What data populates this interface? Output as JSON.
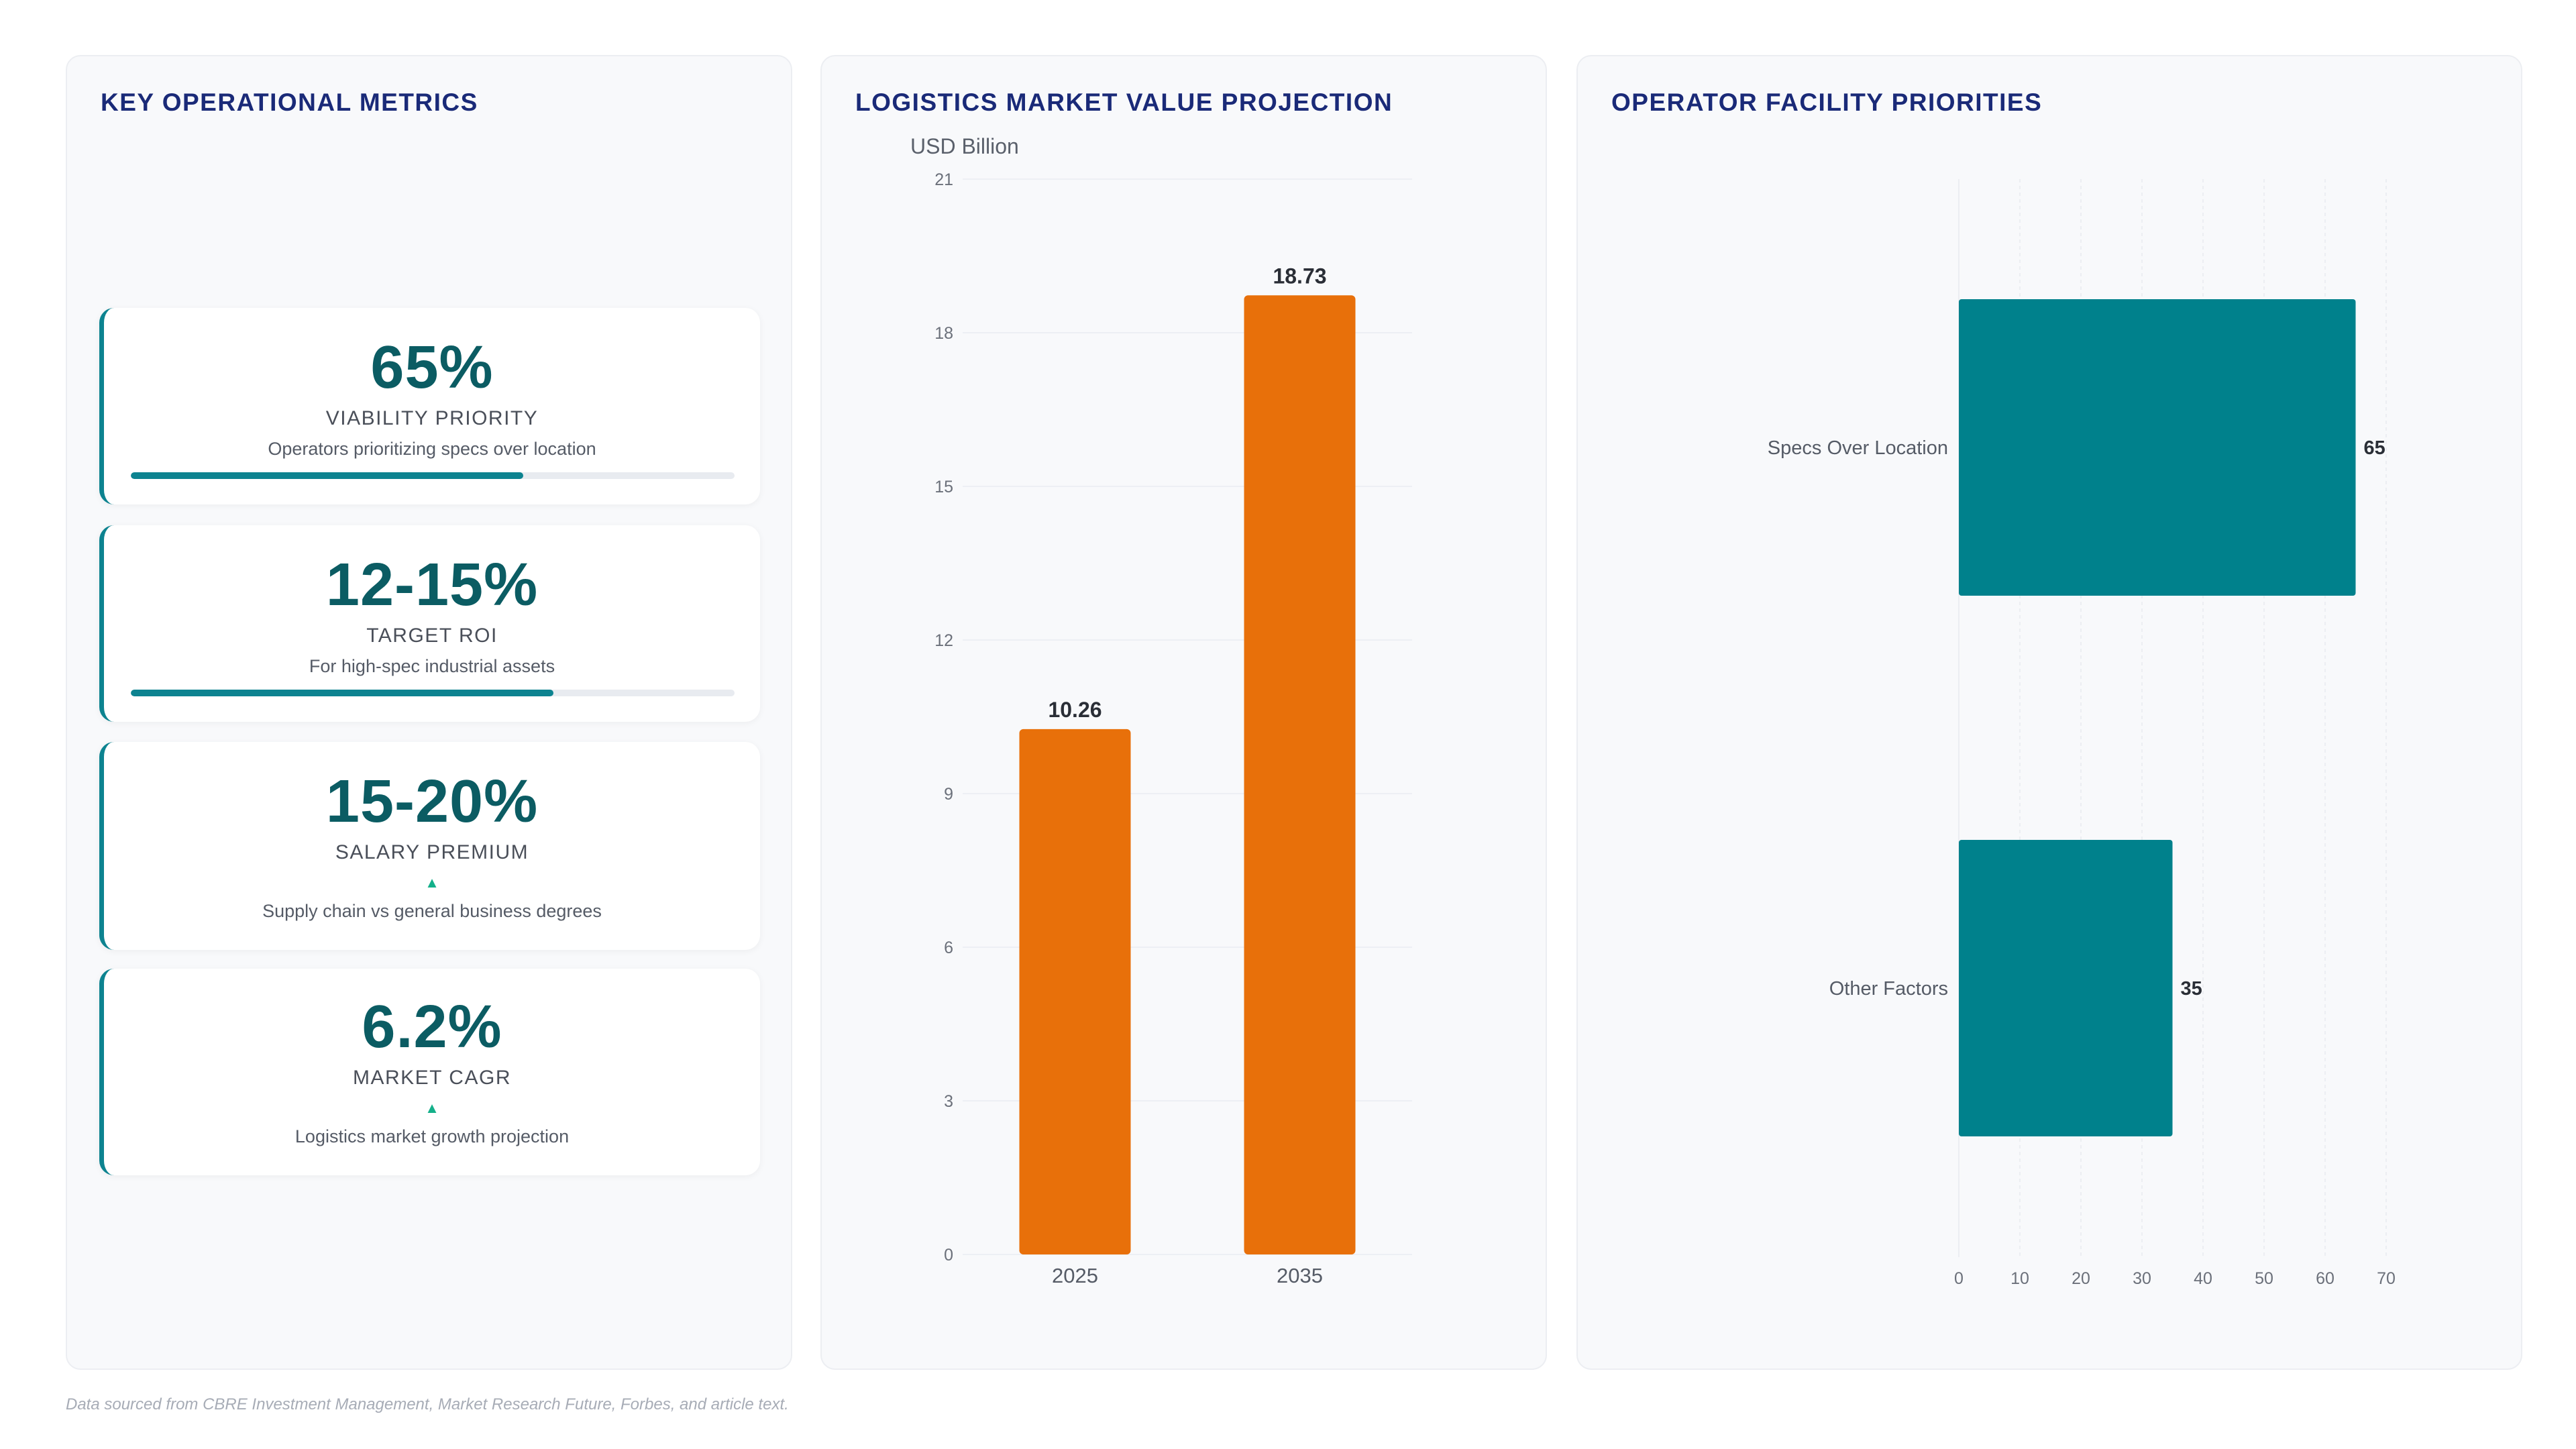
{
  "panels": {
    "metrics_title": "KEY OPERATIONAL METRICS",
    "market_title": "LOGISTICS MARKET VALUE PROJECTION",
    "priorities_title": "OPERATOR FACILITY PRIORITIES"
  },
  "metrics": [
    {
      "value": "65%",
      "label": "VIABILITY PRIORITY",
      "desc": "Operators prioritizing specs over location",
      "progress": 0.65
    },
    {
      "value": "12-15%",
      "label": "TARGET ROI",
      "desc": "For high-spec industrial assets",
      "progress": 0.7
    },
    {
      "value": "15-20%",
      "label": "SALARY PREMIUM",
      "desc": "Supply chain vs general business degrees",
      "indicator": "▲"
    },
    {
      "value": "6.2%",
      "label": "MARKET CAGR",
      "desc": "Logistics market growth projection",
      "indicator": "▲"
    }
  ],
  "chart_data": [
    {
      "type": "bar",
      "title": "LOGISTICS MARKET VALUE PROJECTION",
      "ylabel": "USD Billion",
      "categories": [
        "2025",
        "2035"
      ],
      "values": [
        10.26,
        18.73
      ],
      "value_labels": [
        "10.26",
        "18.73"
      ],
      "ylim": [
        0,
        21
      ],
      "yticks": [
        0,
        3,
        6,
        9,
        12,
        15,
        18,
        21
      ],
      "grid": true,
      "color": "#e8700a"
    },
    {
      "type": "bar",
      "orientation": "horizontal",
      "title": "OPERATOR FACILITY PRIORITIES",
      "categories": [
        "Specs Over Location",
        "Other Factors"
      ],
      "values": [
        65,
        35
      ],
      "xlim": [
        0,
        70
      ],
      "xticks": [
        0,
        10,
        20,
        30,
        40,
        50,
        60,
        70
      ],
      "grid": true,
      "color": "#00818c"
    }
  ],
  "footnote": "Data sourced from CBRE Investment Management, Market Research Future, Forbes, and article text."
}
